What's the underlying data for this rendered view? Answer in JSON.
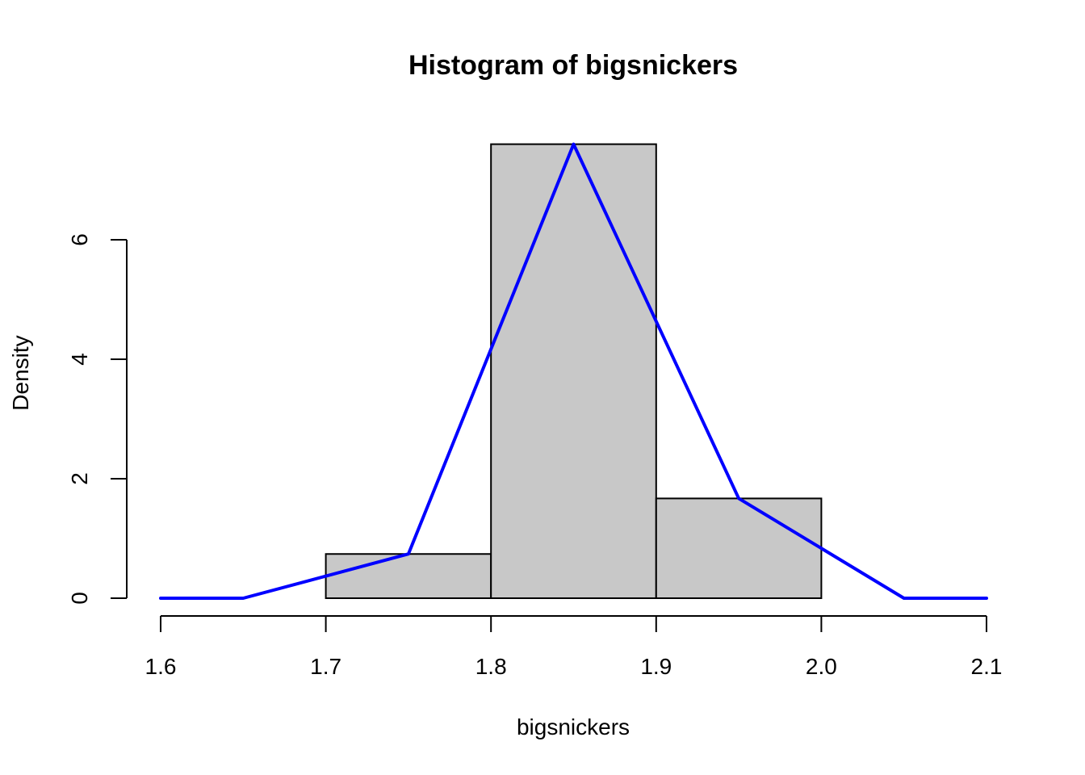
{
  "chart_data": {
    "type": "bar",
    "title": "Histogram of bigsnickers",
    "xlabel": "bigsnickers",
    "ylabel": "Density",
    "xlim": [
      1.6,
      2.1
    ],
    "ylim": [
      0,
      7.6
    ],
    "x_ticks": [
      "1.6",
      "1.7",
      "1.8",
      "1.9",
      "2.0",
      "2.1"
    ],
    "y_ticks": [
      "0",
      "2",
      "4",
      "6"
    ],
    "bins": [
      {
        "from": 1.7,
        "to": 1.8,
        "density": 0.74
      },
      {
        "from": 1.8,
        "to": 1.9,
        "density": 7.6
      },
      {
        "from": 1.9,
        "to": 2.0,
        "density": 1.67
      }
    ],
    "series": [
      {
        "x": [
          1.6,
          1.65,
          1.75,
          1.85,
          1.95,
          2.05,
          2.1
        ],
        "y": [
          0,
          0,
          0.74,
          7.6,
          1.67,
          0,
          0
        ]
      }
    ],
    "grid": false,
    "legend": "none"
  },
  "colors": {
    "bar_fill": "#c8c8c8",
    "bar_stroke": "#000000",
    "line": "#0000ff",
    "axis": "#000000"
  }
}
